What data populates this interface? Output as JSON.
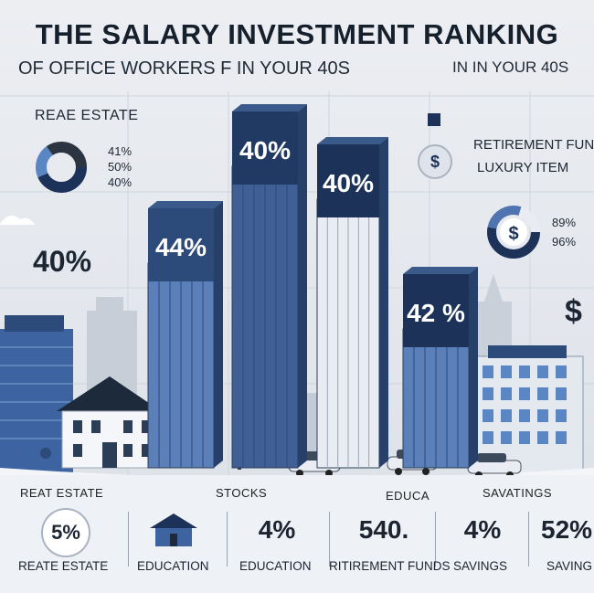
{
  "header": {
    "title": "THE SALARY INVESTMENT RANKING",
    "subtitle": "OF OFFICE WORKERS  F IN  YOUR 40S",
    "subtitle_right": "IN IN YOUR 40S"
  },
  "left_panel": {
    "label": "REAE ESTATE",
    "donut_values": [
      "41%",
      "50%",
      "40%"
    ],
    "big_value": "40%"
  },
  "right_panel": {
    "label1": "RETIREMENT FUN",
    "label2": "LUXURY ITEM",
    "donut_values": [
      "89%",
      "96%"
    ],
    "dollar": "$",
    "dollar_big": "$"
  },
  "chart_data": {
    "type": "bar",
    "categories": [
      "",
      "",
      "",
      ""
    ],
    "values": [
      44,
      40,
      40,
      42
    ],
    "bar_labels": [
      "44%",
      "40%",
      "40%",
      "42 %"
    ],
    "title": "THE SALARY INVESTMENT RANKING",
    "xlabel": "",
    "ylabel": "",
    "colors": [
      "#5b7fb8",
      "#3f5f96",
      "#e9edf3",
      "#5b7fb8"
    ],
    "cap_colors": [
      "#2c4a7a",
      "#213a63",
      "#1d3258",
      "#1d3258"
    ]
  },
  "bottom": {
    "top_labels": [
      "REAT ESTATE",
      "STOCKS",
      "EDUCA",
      "SAVATINGS"
    ],
    "panels": [
      {
        "value": "5%",
        "label": "REATE ESTATE"
      },
      {
        "value": "",
        "label": "EDUCATION"
      },
      {
        "value": "4%",
        "label": "EDUCATION"
      },
      {
        "value": "540.",
        "label": "RITIREMENT FUNDS"
      },
      {
        "value": "4%",
        "label": "SAVINGS"
      },
      {
        "value": "52%",
        "label": "SAVING"
      }
    ]
  },
  "colors": {
    "navy": "#1d3258",
    "blue": "#4f74b0",
    "light": "#e9edf3",
    "accent": "#3a64a8"
  }
}
